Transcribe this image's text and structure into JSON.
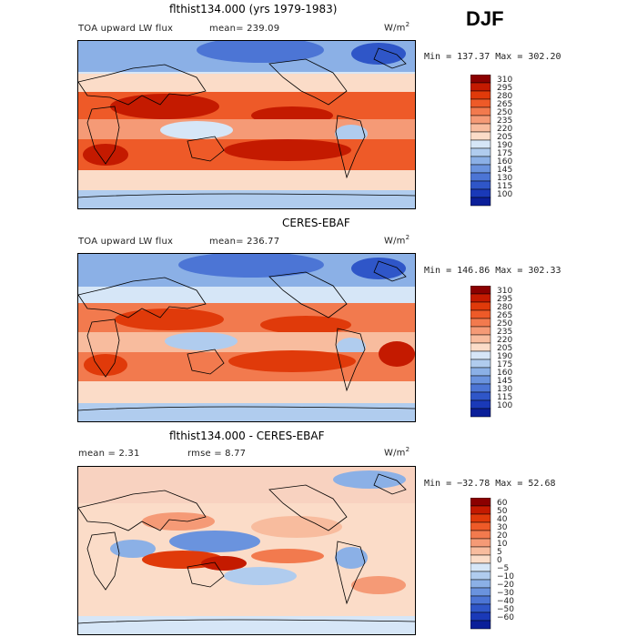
{
  "season": "DJF",
  "units": "W/m",
  "units_sup": "2",
  "panels": [
    {
      "title": "flthist134.000 (yrs 1979-1983)",
      "left_label": "TOA upward LW flux",
      "stat_text": "mean= 239.09",
      "minmax": "Min = 137.37 Max = 302.20",
      "colorbar": [
        "310",
        "295",
        "280",
        "265",
        "250",
        "235",
        "220",
        "205",
        "190",
        "175",
        "160",
        "145",
        "130",
        "115",
        "100"
      ]
    },
    {
      "title": "CERES-EBAF",
      "left_label": "TOA upward LW flux",
      "stat_text": "mean= 236.77",
      "minmax": "Min = 146.86 Max = 302.33",
      "colorbar": [
        "310",
        "295",
        "280",
        "265",
        "250",
        "235",
        "220",
        "205",
        "190",
        "175",
        "160",
        "145",
        "130",
        "115",
        "100"
      ]
    },
    {
      "title": "flthist134.000 - CERES-EBAF",
      "left_label": "mean =   2.31",
      "stat_text": "rmse =   8.77",
      "minmax": "Min = −32.78 Max =  52.68",
      "colorbar": [
        "60",
        "50",
        "40",
        "30",
        "20",
        "10",
        "5",
        "0",
        "−5",
        "−10",
        "−20",
        "−30",
        "−40",
        "−50",
        "−60"
      ]
    }
  ],
  "chart_data": [
    {
      "type": "heatmap",
      "title": "flthist134.000 (yrs 1979-1983)",
      "variable": "TOA upward LW flux",
      "units": "W/m2",
      "season": "DJF",
      "mean": 239.09,
      "min": 137.37,
      "max": 302.2,
      "levels": [
        100,
        115,
        130,
        145,
        160,
        175,
        190,
        205,
        220,
        235,
        250,
        265,
        280,
        295,
        310
      ]
    },
    {
      "type": "heatmap",
      "title": "CERES-EBAF",
      "variable": "TOA upward LW flux",
      "units": "W/m2",
      "season": "DJF",
      "mean": 236.77,
      "min": 146.86,
      "max": 302.33,
      "levels": [
        100,
        115,
        130,
        145,
        160,
        175,
        190,
        205,
        220,
        235,
        250,
        265,
        280,
        295,
        310
      ]
    },
    {
      "type": "heatmap",
      "title": "flthist134.000 - CERES-EBAF",
      "units": "W/m2",
      "season": "DJF",
      "mean": 2.31,
      "rmse": 8.77,
      "min": -32.78,
      "max": 52.68,
      "levels": [
        -60,
        -50,
        -40,
        -30,
        -20,
        -10,
        -5,
        0,
        5,
        10,
        20,
        30,
        40,
        50,
        60
      ]
    }
  ],
  "colors": {
    "abs_scale_top_to_bottom": [
      "#8b0000",
      "#c41a00",
      "#e03a0a",
      "#ee5a28",
      "#f27a4e",
      "#f59a76",
      "#f8bc9e",
      "#fbdcc8",
      "#d6e6f7",
      "#b0ccee",
      "#8bb0e6",
      "#6a93de",
      "#4c75d5",
      "#2f56c8",
      "#1a39b8",
      "#0b1f99"
    ],
    "diff_scale_top_to_bottom": [
      "#8b0000",
      "#c41a00",
      "#e03a0a",
      "#ee5a28",
      "#f27a4e",
      "#f59a76",
      "#f8bc9e",
      "#fbdcc8",
      "#d6e6f7",
      "#b0ccee",
      "#8bb0e6",
      "#6a93de",
      "#4c75d5",
      "#2f56c8",
      "#1a39b8",
      "#0b1f99"
    ]
  }
}
